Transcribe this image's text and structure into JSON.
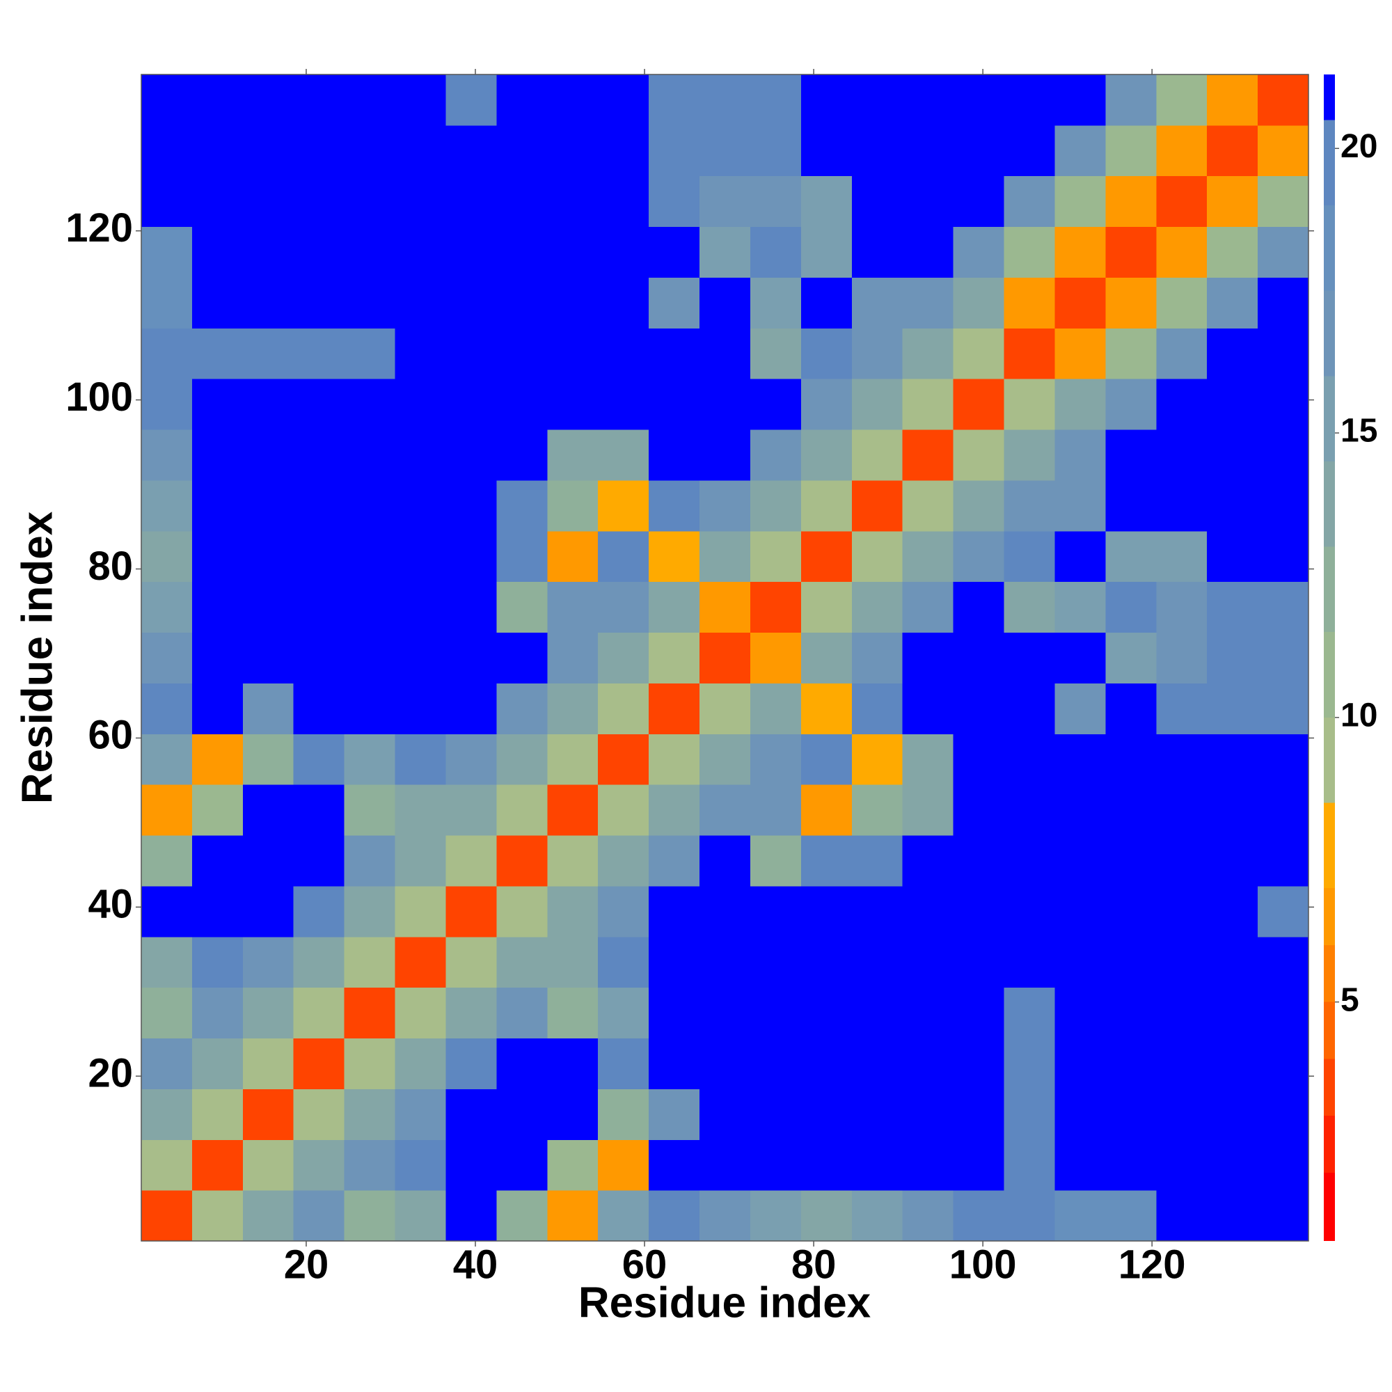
{
  "chart_data": {
    "type": "heatmap",
    "xlabel": "Residue index",
    "ylabel": "Residue index",
    "x_bins": [
      0.5,
      6.5,
      12.5,
      18.5,
      24.5,
      30.5,
      36.5,
      42.5,
      48.5,
      54.5,
      60.5,
      66.5,
      72.5,
      78.5,
      84.5,
      90.5,
      96.5,
      102.5,
      108.5,
      114.5,
      120.5,
      126.5,
      132.5,
      138.5
    ],
    "y_bins": [
      0.5,
      6.5,
      12.5,
      18.5,
      24.5,
      30.5,
      36.5,
      42.5,
      48.5,
      54.5,
      60.5,
      66.5,
      72.5,
      78.5,
      84.5,
      90.5,
      96.5,
      102.5,
      108.5,
      114.5,
      120.5,
      126.5,
      132.5,
      138.5
    ],
    "values": [
      [
        3,
        9,
        14,
        17,
        12,
        13,
        21,
        12,
        6,
        15,
        19,
        17,
        15,
        13,
        15,
        17,
        20,
        19,
        18,
        18,
        21,
        21,
        21
      ],
      [
        9,
        3,
        9,
        14,
        17,
        20,
        21,
        21,
        10,
        6,
        21,
        21,
        21,
        21,
        21,
        21,
        21,
        19,
        21,
        21,
        21,
        21,
        21
      ],
      [
        14,
        9,
        3,
        9,
        14,
        17,
        21,
        21,
        21,
        12,
        16,
        21,
        21,
        21,
        21,
        21,
        21,
        19,
        21,
        21,
        21,
        21,
        21
      ],
      [
        17,
        14,
        9,
        3,
        9,
        14,
        20,
        21,
        21,
        19,
        21,
        21,
        21,
        21,
        21,
        21,
        21,
        19,
        21,
        21,
        21,
        21,
        21
      ],
      [
        12,
        17,
        14,
        9,
        3,
        9,
        14,
        17,
        12,
        15,
        21,
        21,
        21,
        21,
        21,
        21,
        21,
        19,
        21,
        21,
        21,
        21,
        21
      ],
      [
        13,
        20,
        17,
        14,
        9,
        3,
        9,
        14,
        13,
        19,
        21,
        21,
        21,
        21,
        21,
        21,
        21,
        21,
        21,
        21,
        21,
        21,
        21
      ],
      [
        21,
        21,
        21,
        20,
        14,
        9,
        3,
        9,
        14,
        17,
        21,
        21,
        21,
        21,
        21,
        21,
        21,
        21,
        21,
        21,
        21,
        21,
        19
      ],
      [
        12,
        21,
        21,
        21,
        17,
        14,
        9,
        3,
        9,
        14,
        17,
        21,
        12,
        19,
        19,
        21,
        21,
        21,
        21,
        21,
        21,
        21,
        21
      ],
      [
        6,
        10,
        21,
        21,
        12,
        13,
        14,
        9,
        3,
        9,
        14,
        17,
        17,
        6,
        12,
        13,
        21,
        21,
        21,
        21,
        21,
        21,
        21
      ],
      [
        15,
        6,
        12,
        19,
        15,
        19,
        17,
        14,
        9,
        3,
        9,
        14,
        17,
        19,
        7,
        14,
        21,
        21,
        21,
        21,
        21,
        21,
        21
      ],
      [
        19,
        21,
        16,
        21,
        21,
        21,
        21,
        17,
        14,
        9,
        3,
        9,
        14,
        7,
        19,
        21,
        21,
        21,
        17,
        21,
        19,
        19,
        19
      ],
      [
        17,
        21,
        21,
        21,
        21,
        21,
        21,
        21,
        17,
        14,
        9,
        3,
        6,
        14,
        17,
        21,
        21,
        21,
        21,
        15,
        16,
        19,
        19
      ],
      [
        15,
        21,
        21,
        21,
        21,
        21,
        21,
        12,
        17,
        17,
        14,
        6,
        3,
        9,
        14,
        17,
        21,
        14,
        15,
        19,
        16,
        19,
        19
      ],
      [
        13,
        21,
        21,
        21,
        21,
        21,
        21,
        19,
        6,
        19,
        7,
        14,
        9,
        3,
        9,
        14,
        17,
        19,
        21,
        15,
        15,
        21,
        21
      ],
      [
        15,
        21,
        21,
        21,
        21,
        21,
        21,
        19,
        12,
        7,
        19,
        17,
        14,
        9,
        3,
        9,
        14,
        17,
        16,
        21,
        21,
        21,
        21
      ],
      [
        17,
        21,
        21,
        21,
        21,
        21,
        21,
        21,
        13,
        14,
        21,
        21,
        17,
        14,
        9,
        3,
        9,
        14,
        17,
        21,
        21,
        21,
        21
      ],
      [
        20,
        21,
        21,
        21,
        21,
        21,
        21,
        21,
        21,
        21,
        21,
        21,
        21,
        17,
        14,
        9,
        3,
        9,
        14,
        17,
        21,
        21,
        21
      ],
      [
        19,
        19,
        19,
        19,
        19,
        21,
        21,
        21,
        21,
        21,
        21,
        21,
        14,
        19,
        17,
        14,
        9,
        3,
        6,
        11,
        17,
        21,
        21
      ],
      [
        18,
        21,
        21,
        21,
        21,
        21,
        21,
        21,
        21,
        21,
        17,
        21,
        15,
        21,
        16,
        17,
        14,
        6,
        3,
        6,
        11,
        17,
        21
      ],
      [
        18,
        21,
        21,
        21,
        21,
        21,
        21,
        21,
        21,
        21,
        21,
        15,
        19,
        15,
        21,
        21,
        17,
        11,
        6,
        3,
        6,
        11,
        17
      ],
      [
        21,
        21,
        21,
        21,
        21,
        21,
        21,
        21,
        21,
        21,
        19,
        16,
        16,
        15,
        21,
        21,
        21,
        17,
        11,
        6,
        3,
        6,
        11
      ],
      [
        21,
        21,
        21,
        21,
        21,
        21,
        21,
        21,
        21,
        21,
        19,
        19,
        19,
        21,
        21,
        21,
        21,
        21,
        17,
        11,
        6,
        3,
        6
      ],
      [
        21,
        21,
        21,
        21,
        21,
        21,
        19,
        21,
        21,
        21,
        19,
        19,
        19,
        21,
        21,
        21,
        21,
        21,
        21,
        17,
        11,
        6,
        3
      ]
    ],
    "xlim": [
      0.5,
      138.5
    ],
    "ylim": [
      0.5,
      138.5
    ],
    "xticks": [
      20,
      40,
      60,
      80,
      100,
      120
    ],
    "yticks": [
      20,
      40,
      60,
      80,
      100,
      120
    ],
    "colorbar": {
      "levels": [
        0.8,
        2,
        3,
        4,
        5,
        6,
        7,
        8.5,
        10,
        11.5,
        13,
        14.5,
        16,
        17.5,
        19,
        20.5,
        21.3
      ],
      "colors": [
        "#ff0000",
        "#ff2200",
        "#ff4400",
        "#ff6600",
        "#ff8000",
        "#ff9900",
        "#ffaa00",
        "#a8bd8a",
        "#9bb890",
        "#8fb09a",
        "#84a6a6",
        "#7a9fb0",
        "#6e94b8",
        "#6690bd",
        "#5e87c0",
        "#0000ff"
      ],
      "ticks": [
        5,
        10,
        15,
        20
      ]
    }
  }
}
